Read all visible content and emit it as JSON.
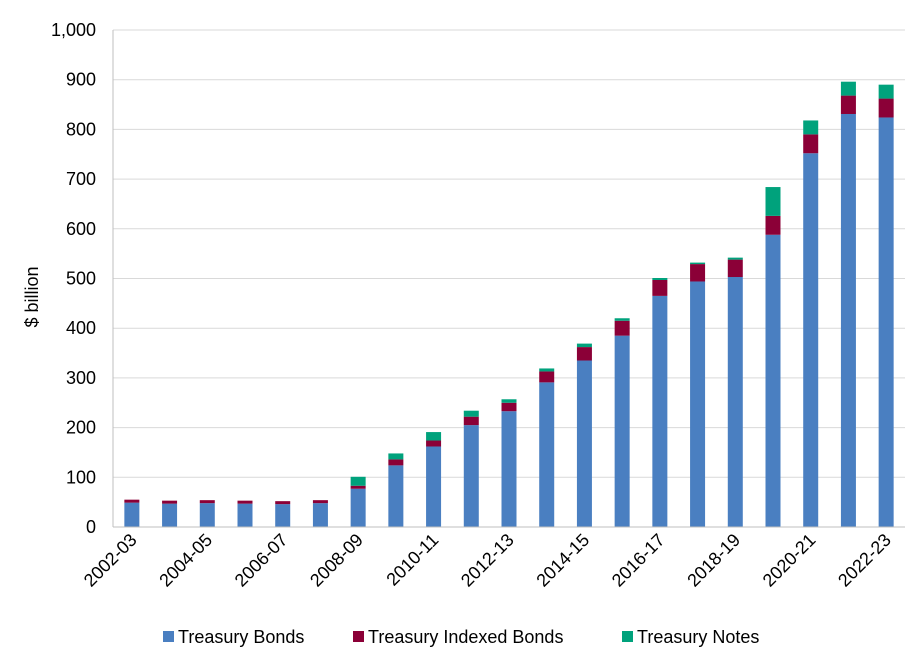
{
  "chart_data": {
    "type": "bar",
    "stacked": true,
    "title": "",
    "xlabel": "",
    "ylabel": "$ billion",
    "ylim": [
      0,
      1000
    ],
    "y_ticks": [
      0,
      100,
      200,
      300,
      400,
      500,
      600,
      700,
      800,
      900,
      1000
    ],
    "y_tick_labels": [
      "0",
      "100",
      "200",
      "300",
      "400",
      "500",
      "600",
      "700",
      "800",
      "900",
      "1,000"
    ],
    "grid": "horizontal",
    "legend_position": "bottom",
    "categories": [
      "2002-03",
      "2003-04",
      "2004-05",
      "2005-06",
      "2006-07",
      "2007-08",
      "2008-09",
      "2009-10",
      "2010-11",
      "2011-12",
      "2012-13",
      "2013-14",
      "2014-15",
      "2015-16",
      "2016-17",
      "2017-18",
      "2018-19",
      "2019-20",
      "2020-21",
      "2021-22",
      "2022-23"
    ],
    "x_tick_labels": [
      "2002-03",
      "",
      "2004-05",
      "",
      "2006-07",
      "",
      "2008-09",
      "",
      "2010-11",
      "",
      "2012-13",
      "",
      "2014-15",
      "",
      "2016-17",
      "",
      "2018-19",
      "",
      "2020-21",
      "",
      "2022-23"
    ],
    "series": [
      {
        "name": "Treasury Bonds",
        "color": "#4a7fc1",
        "values": [
          49,
          47,
          48,
          47,
          46,
          48,
          77,
          124,
          162,
          205,
          233,
          291,
          335,
          385,
          465,
          494,
          503,
          588,
          752,
          831,
          824
        ]
      },
      {
        "name": "Treasury Indexed Bonds",
        "color": "#8b0037",
        "values": [
          6,
          6,
          6,
          6,
          6,
          6,
          6,
          12,
          12,
          17,
          17,
          22,
          27,
          30,
          32,
          35,
          35,
          38,
          38,
          37,
          38
        ]
      },
      {
        "name": "Treasury Notes",
        "color": "#00a27c",
        "values": [
          0,
          0,
          0,
          0,
          0,
          0,
          18,
          12,
          17,
          12,
          7,
          6,
          7,
          5,
          4,
          3,
          4,
          58,
          28,
          28,
          28
        ]
      }
    ]
  }
}
